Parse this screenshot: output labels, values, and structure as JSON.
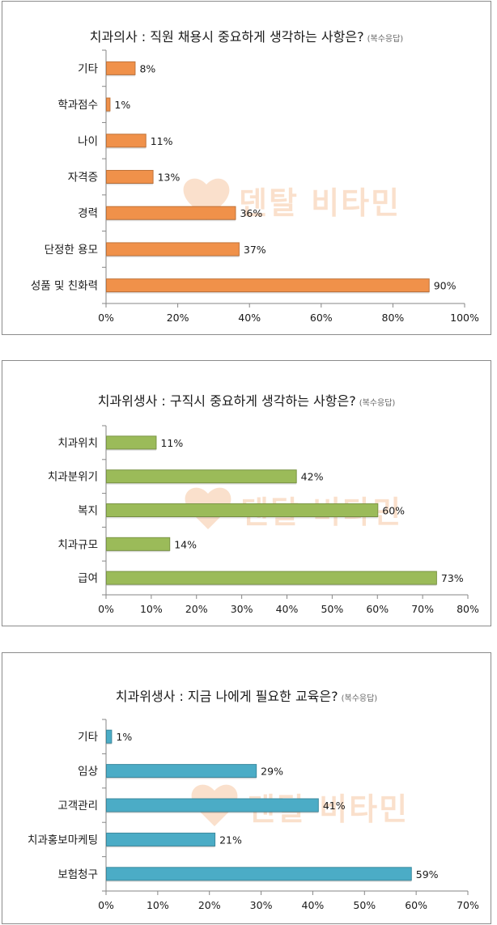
{
  "watermark": {
    "text": "덴탈 비타민"
  },
  "chart_data": [
    {
      "type": "bar",
      "title": "치과의사 : 직원 채용시 중요하게 생각하는 사항은?",
      "note": "(복수응답)",
      "categories": [
        "기타",
        "학과점수",
        "나이",
        "자격증",
        "경력",
        "단정한 용모",
        "성품 및 친화력"
      ],
      "values": [
        8,
        1,
        11,
        13,
        36,
        37,
        90
      ],
      "value_labels": [
        "8%",
        "1%",
        "11%",
        "13%",
        "36%",
        "37%",
        "90%"
      ],
      "xlim": [
        0,
        100
      ],
      "xticks": [
        0,
        20,
        40,
        60,
        80,
        100
      ],
      "xtick_labels": [
        "0%",
        "20%",
        "40%",
        "60%",
        "80%",
        "100%"
      ],
      "color": "#f0914a",
      "grid": false
    },
    {
      "type": "bar",
      "title": "치과위생사 : 구직시 중요하게 생각하는 사항은?",
      "note": "(복수응답)",
      "categories": [
        "치과위치",
        "치과분위기",
        "복지",
        "치과규모",
        "급여"
      ],
      "values": [
        11,
        42,
        60,
        14,
        73
      ],
      "value_labels": [
        "11%",
        "42%",
        "60%",
        "14%",
        "73%"
      ],
      "xlim": [
        0,
        80
      ],
      "xticks": [
        0,
        10,
        20,
        30,
        40,
        50,
        60,
        70,
        80
      ],
      "xtick_labels": [
        "0%",
        "10%",
        "20%",
        "30%",
        "40%",
        "50%",
        "60%",
        "70%",
        "80%"
      ],
      "color": "#9bbb59",
      "grid": false
    },
    {
      "type": "bar",
      "title": "치과위생사 : 지금 나에게 필요한 교육은?",
      "note": "(복수응답)",
      "categories": [
        "기타",
        "임상",
        "고객관리",
        "치과홍보마케팅",
        "보험청구"
      ],
      "values": [
        1,
        29,
        41,
        21,
        59
      ],
      "value_labels": [
        "1%",
        "29%",
        "41%",
        "21%",
        "59%"
      ],
      "xlim": [
        0,
        70
      ],
      "xticks": [
        0,
        10,
        20,
        30,
        40,
        50,
        60,
        70
      ],
      "xtick_labels": [
        "0%",
        "10%",
        "20%",
        "30%",
        "40%",
        "50%",
        "60%",
        "70%"
      ],
      "color": "#4bacc6",
      "grid": false
    }
  ]
}
